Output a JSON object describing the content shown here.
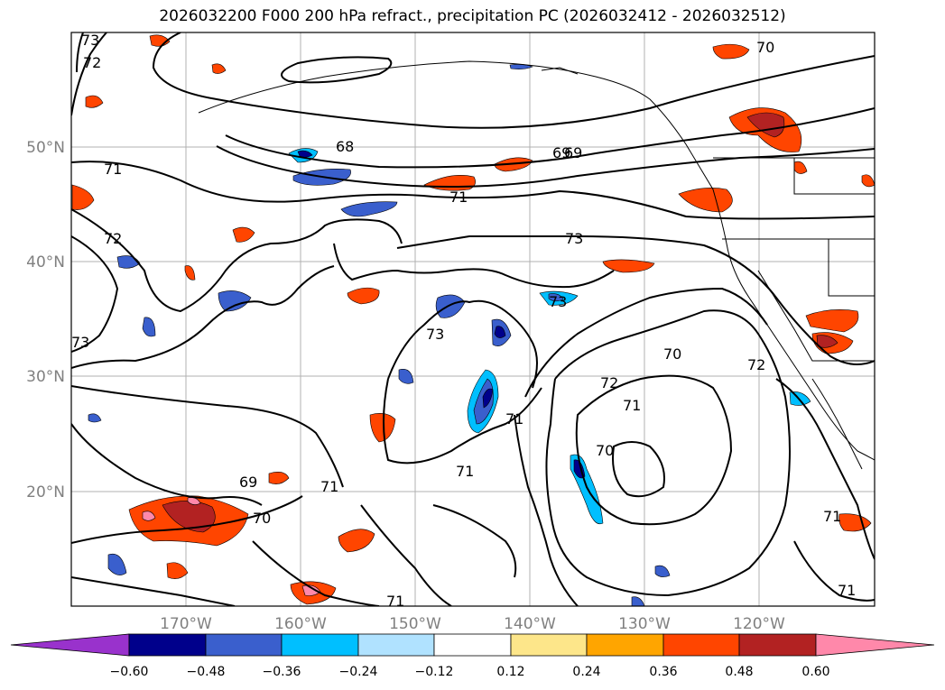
{
  "title": "2026032200 F000 200 hPa refract., precipitation PC (2026032412 - 2026032512)",
  "latitude_labels": [
    "50°N",
    "40°N",
    "30°N",
    "20°N"
  ],
  "longitude_labels": [
    "170°W",
    "160°W",
    "150°W",
    "140°W",
    "130°W",
    "120°W"
  ],
  "contour_labels": [
    "73",
    "72",
    "71",
    "72",
    "73",
    "69",
    "70",
    "68",
    "69",
    "71",
    "73",
    "73",
    "73",
    "70",
    "72",
    "72",
    "71",
    "70",
    "71",
    "69",
    "70",
    "71",
    "71",
    "71",
    "71",
    "71"
  ],
  "colorbar": {
    "ticks": [
      "−0.60",
      "−0.48",
      "−0.36",
      "−0.24",
      "−0.12",
      "0.12",
      "0.24",
      "0.36",
      "0.48",
      "0.60"
    ],
    "colors": [
      "#9932cc",
      "#00008b",
      "#3a5fcd",
      "#00bfff",
      "#b0e2ff",
      "#ffffff",
      "#fde68a",
      "#ffa500",
      "#ff4500",
      "#b22222",
      "#ff88aa"
    ]
  }
}
